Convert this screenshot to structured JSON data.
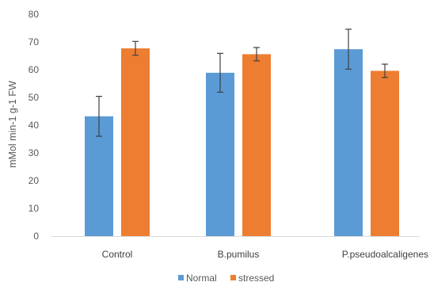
{
  "chart_data": {
    "type": "bar",
    "title": "",
    "xlabel": "",
    "ylabel": "mMol min-1 g-1 FW",
    "ylim": [
      0,
      80
    ],
    "yticks": [
      0,
      10,
      20,
      30,
      40,
      50,
      60,
      70,
      80
    ],
    "grid": false,
    "legend_position": "bottom",
    "categories": [
      "Control",
      "B.pumilus",
      "P.pseudoalcaligenes"
    ],
    "series": [
      {
        "name": "Normal",
        "color": "#5B9BD5",
        "values": [
          43.2,
          58.9,
          67.4
        ],
        "errors": [
          7.2,
          7.0,
          7.2
        ]
      },
      {
        "name": "stressed",
        "color": "#ED7D31",
        "values": [
          67.7,
          65.6,
          59.6
        ],
        "errors": [
          2.5,
          2.4,
          2.4
        ]
      }
    ]
  }
}
